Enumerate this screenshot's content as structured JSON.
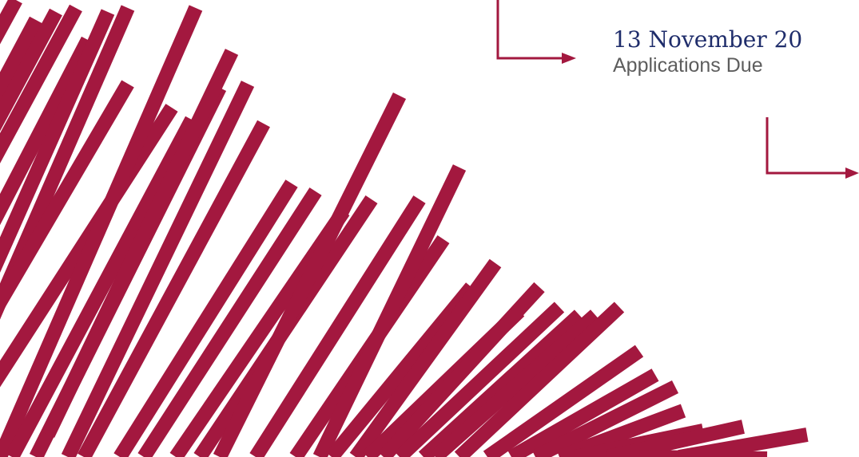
{
  "timeline": {
    "date": "13 November 20",
    "event": "Applications Due"
  },
  "colors": {
    "stripe": "#a3183f",
    "connector": "#a3183f",
    "date_text": "#1f2d6b",
    "event_text": "#5d5d5d"
  },
  "icons": {
    "connector_1": "arrow-right-icon",
    "connector_2": "arrow-right-icon"
  }
}
